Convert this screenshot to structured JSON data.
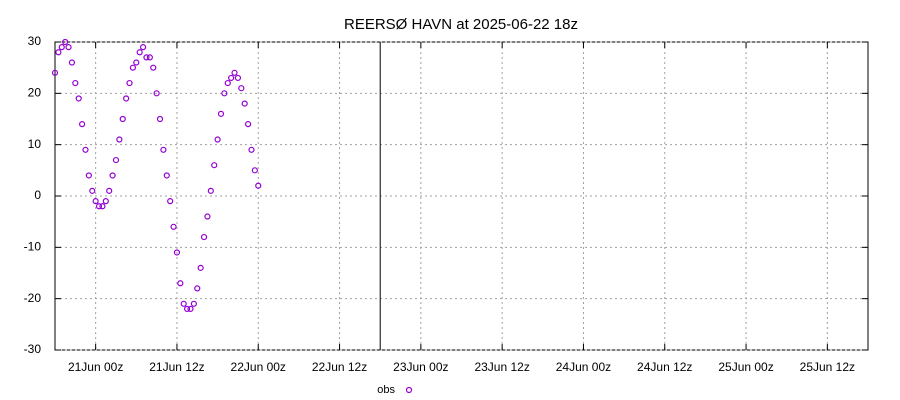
{
  "chart_data": {
    "type": "scatter",
    "title": "REERSØ HAVN at 2025-06-22 18z",
    "series": [
      {
        "name": "obs",
        "color": "#9400d3",
        "x": [
          "2025-06-20T18:00",
          "2025-06-20T18:30",
          "2025-06-20T19:00",
          "2025-06-20T19:30",
          "2025-06-20T20:00",
          "2025-06-20T20:30",
          "2025-06-20T21:00",
          "2025-06-20T21:30",
          "2025-06-20T22:00",
          "2025-06-20T22:30",
          "2025-06-20T23:00",
          "2025-06-20T23:30",
          "2025-06-21T00:00",
          "2025-06-21T00:30",
          "2025-06-21T01:00",
          "2025-06-21T01:30",
          "2025-06-21T02:00",
          "2025-06-21T02:30",
          "2025-06-21T03:00",
          "2025-06-21T03:30",
          "2025-06-21T04:00",
          "2025-06-21T04:30",
          "2025-06-21T05:00",
          "2025-06-21T05:30",
          "2025-06-21T06:00",
          "2025-06-21T06:30",
          "2025-06-21T07:00",
          "2025-06-21T07:30",
          "2025-06-21T08:00",
          "2025-06-21T08:30",
          "2025-06-21T09:00",
          "2025-06-21T09:30",
          "2025-06-21T10:00",
          "2025-06-21T10:30",
          "2025-06-21T11:00",
          "2025-06-21T11:30",
          "2025-06-21T12:00",
          "2025-06-21T12:30",
          "2025-06-21T13:00",
          "2025-06-21T13:30",
          "2025-06-21T14:00",
          "2025-06-21T14:30",
          "2025-06-21T15:00",
          "2025-06-21T15:30",
          "2025-06-21T16:00",
          "2025-06-21T16:30",
          "2025-06-21T17:00",
          "2025-06-21T17:30",
          "2025-06-21T18:00",
          "2025-06-21T18:30",
          "2025-06-21T19:00",
          "2025-06-21T19:30",
          "2025-06-21T20:00",
          "2025-06-21T20:30",
          "2025-06-21T21:00",
          "2025-06-21T21:30",
          "2025-06-21T22:00",
          "2025-06-21T22:30",
          "2025-06-21T23:00",
          "2025-06-21T23:30",
          "2025-06-22T00:00"
        ],
        "values": [
          24,
          28,
          29,
          30,
          29,
          26,
          22,
          19,
          14,
          9,
          4,
          1,
          -1,
          -2,
          -2,
          -1,
          1,
          4,
          7,
          11,
          15,
          19,
          22,
          25,
          26,
          28,
          29,
          27,
          27,
          25,
          20,
          15,
          9,
          4,
          -1,
          -6,
          -11,
          -17,
          -21,
          -22,
          -22,
          -21,
          -18,
          -14,
          -8,
          -4,
          1,
          6,
          11,
          16,
          20,
          22,
          23,
          24,
          23,
          21,
          18,
          14,
          9,
          5,
          2
        ]
      }
    ],
    "xlim": [
      "2025-06-20T18:00",
      "2025-06-25T18:00"
    ],
    "xticks": [
      {
        "value": "2025-06-21T00:00",
        "label": "21Jun 00z"
      },
      {
        "value": "2025-06-21T12:00",
        "label": "21Jun 12z"
      },
      {
        "value": "2025-06-22T00:00",
        "label": "22Jun 00z"
      },
      {
        "value": "2025-06-22T12:00",
        "label": "22Jun 12z"
      },
      {
        "value": "2025-06-23T00:00",
        "label": "23Jun 00z"
      },
      {
        "value": "2025-06-23T12:00",
        "label": "23Jun 12z"
      },
      {
        "value": "2025-06-24T00:00",
        "label": "24Jun 00z"
      },
      {
        "value": "2025-06-24T12:00",
        "label": "24Jun 12z"
      },
      {
        "value": "2025-06-25T00:00",
        "label": "25Jun 00z"
      },
      {
        "value": "2025-06-25T12:00",
        "label": "25Jun 12z"
      }
    ],
    "ylim": [
      -30,
      30
    ],
    "yticks": [
      -30,
      -20,
      -10,
      0,
      10,
      20,
      30
    ],
    "vline": "2025-06-22T18:00",
    "grid": true
  }
}
